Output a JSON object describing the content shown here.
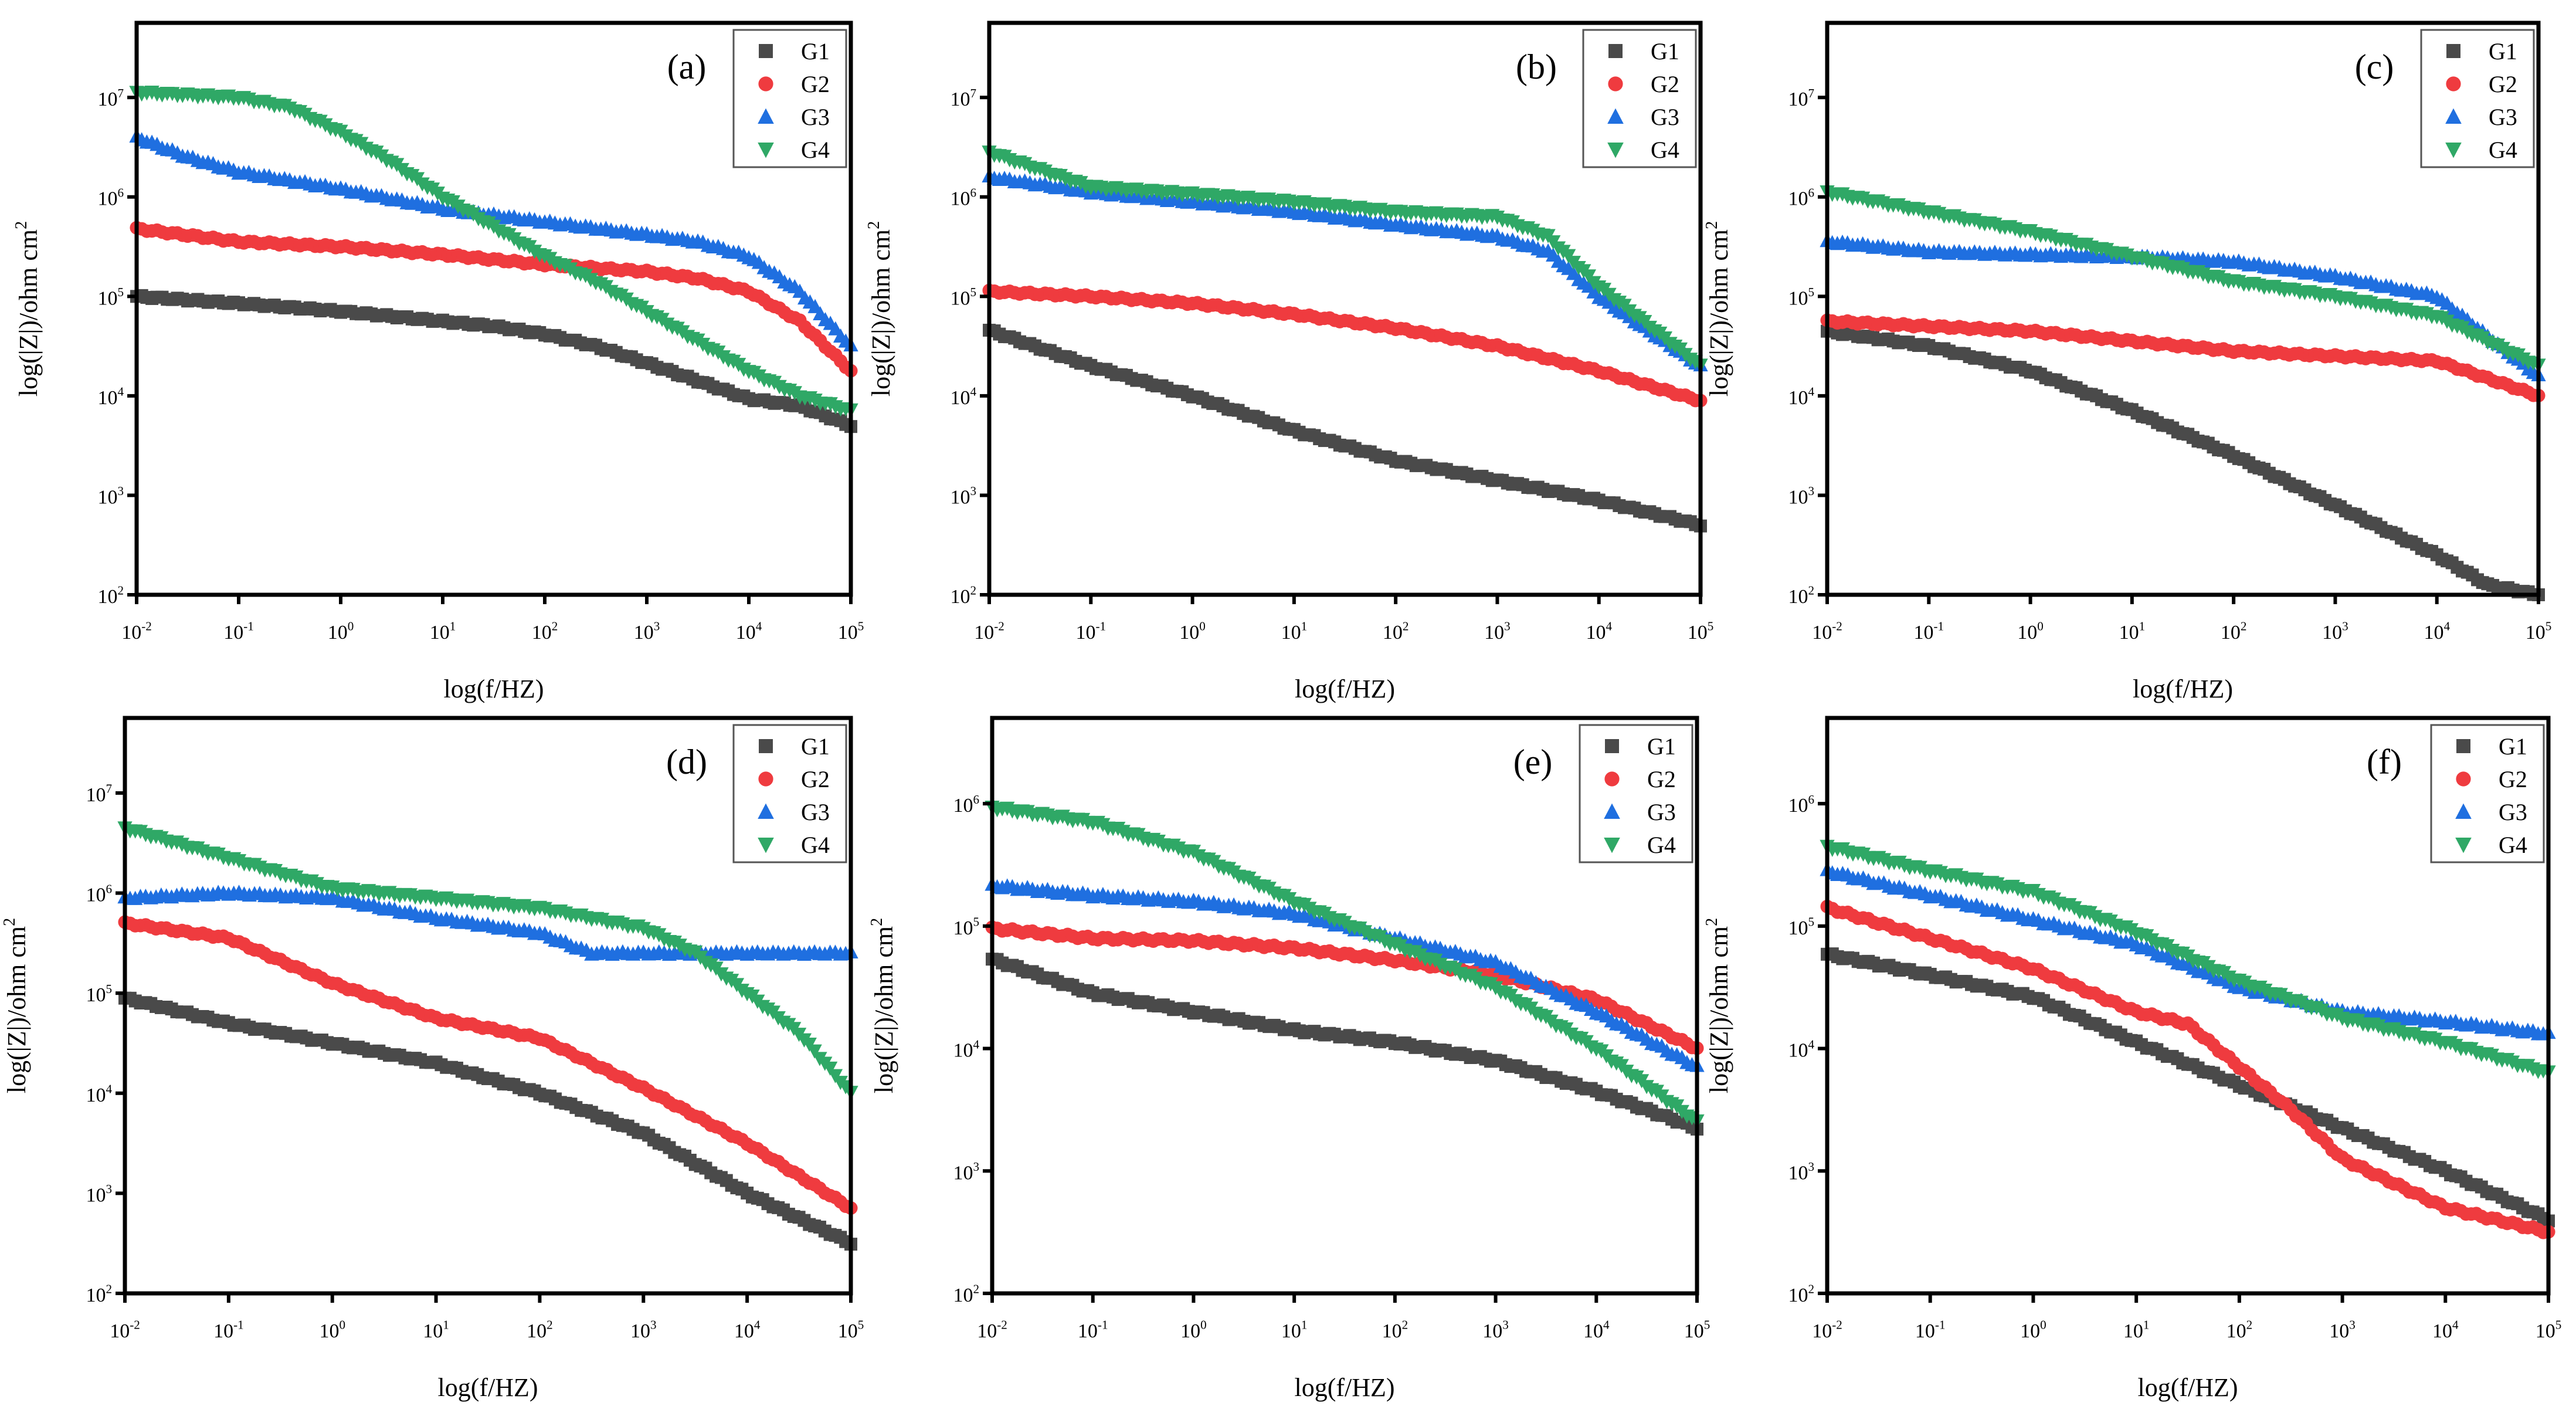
{
  "colors": {
    "G1": "#4a4a4a",
    "G2": "#ef3b3f",
    "G3": "#1f6fe0",
    "G4": "#2fa866",
    "axis": "#000000"
  },
  "chart_data": [
    {
      "type": "scatter",
      "panel_label": "(a)",
      "xlabel": "log(f/HZ)",
      "ylabel": "log(|Z|)/ohm cm",
      "ylabel_sup": "2",
      "x_scale": "log",
      "y_scale": "log",
      "xlim_log10": [
        -2,
        5
      ],
      "ylim_log10": [
        2,
        7.75
      ],
      "x_ticks": [
        "-2",
        "-1",
        "0",
        "1",
        "2",
        "3",
        "4",
        "5"
      ],
      "y_ticks": [
        "2",
        "3",
        "4",
        "5",
        "6",
        "7"
      ],
      "legend": [
        "G1",
        "G2",
        "G3",
        "G4"
      ],
      "legend_position": "top-right",
      "series": [
        {
          "name": "G1",
          "marker": "square",
          "log10_f": [
            -2,
            -1,
            0,
            1,
            1.5,
            2,
            2.5,
            3,
            3.5,
            4,
            4.5,
            5
          ],
          "log10_Z": [
            5.0,
            4.93,
            4.85,
            4.75,
            4.7,
            4.62,
            4.5,
            4.33,
            4.15,
            3.97,
            3.9,
            3.7
          ]
        },
        {
          "name": "G2",
          "marker": "circle",
          "log10_f": [
            -2,
            -1,
            0,
            1,
            2,
            3,
            3.5,
            4,
            4.5,
            5
          ],
          "log10_Z": [
            5.68,
            5.55,
            5.5,
            5.42,
            5.32,
            5.25,
            5.18,
            5.05,
            4.75,
            4.25
          ]
        },
        {
          "name": "G3",
          "marker": "triangle-up",
          "log10_f": [
            -2,
            -1.5,
            -1,
            0,
            1,
            2,
            3,
            3.5,
            4,
            4.5,
            5
          ],
          "log10_Z": [
            6.6,
            6.4,
            6.25,
            6.08,
            5.88,
            5.75,
            5.62,
            5.55,
            5.4,
            5.05,
            4.5
          ]
        },
        {
          "name": "G4",
          "marker": "triangle-down",
          "log10_f": [
            -2,
            -1,
            -0.5,
            0,
            0.5,
            1,
            1.5,
            2,
            2.5,
            3,
            3.5,
            4,
            4.5,
            5
          ],
          "log10_Z": [
            7.05,
            7.0,
            6.9,
            6.65,
            6.35,
            6.0,
            5.7,
            5.4,
            5.15,
            4.85,
            4.55,
            4.25,
            4.0,
            3.85
          ]
        }
      ]
    },
    {
      "type": "scatter",
      "panel_label": "(b)",
      "xlabel": "log(f/HZ)",
      "ylabel": "log(|Z|)/ohm cm",
      "ylabel_sup": "2",
      "x_scale": "log",
      "y_scale": "log",
      "xlim_log10": [
        -2,
        5
      ],
      "ylim_log10": [
        2,
        7.75
      ],
      "x_ticks": [
        "-2",
        "-1",
        "0",
        "1",
        "2",
        "3",
        "4",
        "5"
      ],
      "y_ticks": [
        "2",
        "3",
        "4",
        "5",
        "6",
        "7"
      ],
      "legend": [
        "G1",
        "G2",
        "G3",
        "G4"
      ],
      "legend_position": "top-right",
      "series": [
        {
          "name": "G1",
          "marker": "square",
          "log10_f": [
            -2,
            -1,
            0,
            1,
            2,
            3,
            4,
            5
          ],
          "log10_Z": [
            4.66,
            4.3,
            4.0,
            3.65,
            3.35,
            3.15,
            2.95,
            2.7
          ]
        },
        {
          "name": "G2",
          "marker": "circle",
          "log10_f": [
            -2,
            -1,
            0,
            1,
            2,
            3,
            4,
            5
          ],
          "log10_Z": [
            5.05,
            5.0,
            4.93,
            4.82,
            4.68,
            4.5,
            4.25,
            3.95
          ]
        },
        {
          "name": "G3",
          "marker": "triangle-up",
          "log10_f": [
            -2,
            -1,
            0,
            1,
            2,
            3,
            3.5,
            4,
            5
          ],
          "log10_Z": [
            6.2,
            6.05,
            5.95,
            5.85,
            5.72,
            5.6,
            5.45,
            5.0,
            4.3
          ]
        },
        {
          "name": "G4",
          "marker": "triangle-down",
          "log10_f": [
            -2,
            -1,
            0,
            1,
            2,
            3,
            3.5,
            4,
            5
          ],
          "log10_Z": [
            6.45,
            6.1,
            6.03,
            5.95,
            5.85,
            5.8,
            5.6,
            5.1,
            4.3
          ]
        }
      ]
    },
    {
      "type": "scatter",
      "panel_label": "(c)",
      "xlabel": "log(f/HZ)",
      "ylabel": "log(|Z|)/ohm cm",
      "ylabel_sup": "2",
      "x_scale": "log",
      "y_scale": "log",
      "xlim_log10": [
        -2,
        5
      ],
      "ylim_log10": [
        2,
        7.75
      ],
      "x_ticks": [
        "-2",
        "-1",
        "0",
        "1",
        "2",
        "3",
        "4",
        "5"
      ],
      "y_ticks": [
        "2",
        "3",
        "4",
        "5",
        "6",
        "7"
      ],
      "legend": [
        "G1",
        "G2",
        "G3",
        "G4"
      ],
      "legend_position": "top-right",
      "series": [
        {
          "name": "G1",
          "marker": "square",
          "log10_f": [
            -2,
            -1,
            0,
            1,
            2,
            3,
            4,
            4.5,
            5
          ],
          "log10_Z": [
            4.65,
            4.5,
            4.25,
            3.85,
            3.4,
            2.9,
            2.4,
            2.1,
            2.0
          ]
        },
        {
          "name": "G2",
          "marker": "circle",
          "log10_f": [
            -2,
            0,
            1,
            2,
            3,
            4,
            5
          ],
          "log10_Z": [
            4.75,
            4.65,
            4.55,
            4.45,
            4.4,
            4.35,
            4.0
          ]
        },
        {
          "name": "G3",
          "marker": "triangle-up",
          "log10_f": [
            -2,
            -1,
            0,
            1,
            2,
            3,
            4,
            5
          ],
          "log10_Z": [
            5.55,
            5.45,
            5.42,
            5.4,
            5.35,
            5.2,
            5.0,
            4.2
          ]
        },
        {
          "name": "G4",
          "marker": "triangle-down",
          "log10_f": [
            -2,
            -1,
            0,
            1,
            2,
            3,
            4,
            5
          ],
          "log10_Z": [
            6.05,
            5.85,
            5.65,
            5.4,
            5.15,
            5.0,
            4.8,
            4.3
          ]
        }
      ]
    },
    {
      "type": "scatter",
      "panel_label": "(d)",
      "xlabel": "log(f/HZ)",
      "ylabel": "log(|Z|)/ohm cm",
      "ylabel_sup": "2",
      "x_scale": "log",
      "y_scale": "log",
      "xlim_log10": [
        -2,
        5
      ],
      "ylim_log10": [
        2,
        7.75
      ],
      "x_ticks": [
        "-2",
        "-1",
        "0",
        "1",
        "2",
        "3",
        "4",
        "5"
      ],
      "y_ticks": [
        "2",
        "3",
        "4",
        "5",
        "6",
        "7"
      ],
      "legend": [
        "G1",
        "G2",
        "G3",
        "G4"
      ],
      "legend_position": "top-right",
      "series": [
        {
          "name": "G1",
          "marker": "square",
          "log10_f": [
            -2,
            -1,
            0,
            1,
            2,
            3,
            4,
            5
          ],
          "log10_Z": [
            4.95,
            4.7,
            4.5,
            4.3,
            4.0,
            3.6,
            3.0,
            2.5
          ]
        },
        {
          "name": "G2",
          "marker": "circle",
          "log10_f": [
            -2,
            -1,
            0,
            1,
            2,
            3,
            4,
            5
          ],
          "log10_Z": [
            5.7,
            5.55,
            5.1,
            4.75,
            4.55,
            4.05,
            3.5,
            2.85
          ]
        },
        {
          "name": "G3",
          "marker": "triangle-up",
          "log10_f": [
            -2,
            -1,
            0,
            1,
            2,
            2.5,
            3,
            5
          ],
          "log10_Z": [
            5.95,
            6.0,
            5.95,
            5.75,
            5.6,
            5.4,
            5.4,
            5.4
          ]
        },
        {
          "name": "G4",
          "marker": "triangle-down",
          "log10_f": [
            -2,
            -1,
            0,
            1,
            2,
            3,
            3.5,
            4,
            4.5,
            5
          ],
          "log10_Z": [
            6.65,
            6.35,
            6.05,
            5.95,
            5.85,
            5.65,
            5.4,
            5.0,
            4.6,
            4.0
          ]
        }
      ]
    },
    {
      "type": "scatter",
      "panel_label": "(e)",
      "xlabel": "log(f/HZ)",
      "ylabel": "log(|Z|)/ohm cm",
      "ylabel_sup": "2",
      "x_scale": "log",
      "y_scale": "log",
      "xlim_log10": [
        -2,
        5
      ],
      "ylim_log10": [
        2,
        6.7
      ],
      "x_ticks": [
        "-2",
        "-1",
        "0",
        "1",
        "2",
        "3",
        "4",
        "5"
      ],
      "y_ticks": [
        "2",
        "3",
        "4",
        "5",
        "6"
      ],
      "legend": [
        "G1",
        "G2",
        "G3",
        "G4"
      ],
      "legend_position": "top-right",
      "series": [
        {
          "name": "G1",
          "marker": "square",
          "log10_f": [
            -2,
            -1,
            0,
            1,
            2,
            3,
            4,
            5
          ],
          "log10_Z": [
            4.73,
            4.45,
            4.3,
            4.15,
            4.05,
            3.9,
            3.65,
            3.35
          ]
        },
        {
          "name": "G2",
          "marker": "circle",
          "log10_f": [
            -2,
            -1,
            0,
            1,
            2,
            3,
            4,
            5
          ],
          "log10_Z": [
            4.98,
            4.9,
            4.88,
            4.82,
            4.72,
            4.6,
            4.4,
            4.0
          ]
        },
        {
          "name": "G3",
          "marker": "triangle-up",
          "log10_f": [
            -2,
            -1,
            0,
            1,
            2,
            3,
            4,
            5
          ],
          "log10_Z": [
            5.33,
            5.25,
            5.2,
            5.1,
            4.9,
            4.7,
            4.3,
            3.85
          ]
        },
        {
          "name": "G4",
          "marker": "triangle-down",
          "log10_f": [
            -2,
            -1,
            0,
            1,
            2,
            3,
            4,
            5
          ],
          "log10_Z": [
            5.97,
            5.85,
            5.6,
            5.2,
            4.85,
            4.5,
            4.0,
            3.4
          ]
        }
      ]
    },
    {
      "type": "scatter",
      "panel_label": "(f)",
      "xlabel": "log(f/HZ)",
      "ylabel": "log(|Z|)/ohm cm",
      "ylabel_sup": "2",
      "x_scale": "log",
      "y_scale": "log",
      "xlim_log10": [
        -2,
        5
      ],
      "ylim_log10": [
        2,
        6.7
      ],
      "x_ticks": [
        "-2",
        "-1",
        "0",
        "1",
        "2",
        "3",
        "4",
        "5"
      ],
      "y_ticks": [
        "2",
        "3",
        "4",
        "5",
        "6"
      ],
      "legend": [
        "G1",
        "G2",
        "G3",
        "G4"
      ],
      "legend_position": "top-right",
      "series": [
        {
          "name": "G1",
          "marker": "square",
          "log10_f": [
            -2,
            -1,
            0,
            1,
            2,
            3,
            4,
            5
          ],
          "log10_Z": [
            4.77,
            4.6,
            4.42,
            4.05,
            3.7,
            3.35,
            3.0,
            2.6
          ]
        },
        {
          "name": "G2",
          "marker": "circle",
          "log10_f": [
            -2,
            -1,
            0,
            1,
            1.5,
            2,
            2.5,
            3,
            4,
            5
          ],
          "log10_Z": [
            5.15,
            4.9,
            4.65,
            4.3,
            4.2,
            3.85,
            3.5,
            3.1,
            2.7,
            2.5
          ]
        },
        {
          "name": "G3",
          "marker": "triangle-up",
          "log10_f": [
            -2,
            -1,
            0,
            1,
            2,
            3,
            4,
            5
          ],
          "log10_Z": [
            5.45,
            5.25,
            5.05,
            4.85,
            4.5,
            4.3,
            4.22,
            4.12
          ]
        },
        {
          "name": "G4",
          "marker": "triangle-down",
          "log10_f": [
            -2,
            -1,
            0,
            1,
            2,
            3,
            4,
            5
          ],
          "log10_Z": [
            5.65,
            5.45,
            5.28,
            4.95,
            4.55,
            4.25,
            4.05,
            3.8
          ]
        }
      ]
    }
  ]
}
